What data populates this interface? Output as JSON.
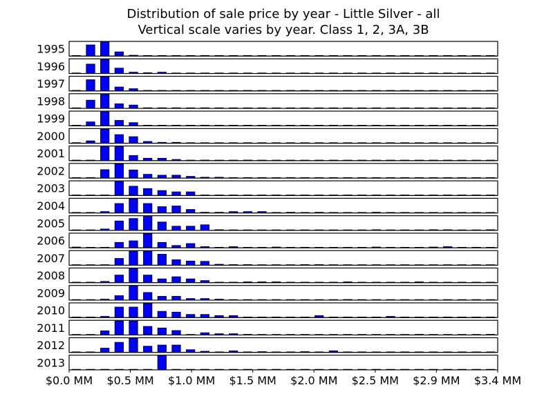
{
  "chart_data": {
    "type": "bar",
    "title": "Distribution of sale price by year - Little Silver - all",
    "subtitle": "Vertical scale varies by year. Class 1, 2, 3A, 3B",
    "xlabel": "",
    "ylabel": "",
    "x_unit": "$ MM",
    "bin_width": 0.1138,
    "xlim": [
      0,
      3.413
    ],
    "x_tick_values": [
      0,
      0.4875,
      0.975,
      1.4625,
      1.95,
      2.4375,
      2.925,
      3.413
    ],
    "x_tick_labels": [
      "$0.0 MM",
      "$0.5 MM",
      "$1.0 MM",
      "$1.5 MM",
      "$2.0 MM",
      "$2.5 MM",
      "$2.9 MM",
      "$3.4 MM"
    ],
    "bin_starts": [
      0,
      0.1138,
      0.2275,
      0.3413,
      0.4551,
      0.5689,
      0.6826,
      0.7964,
      0.9102,
      1.0239,
      1.1377,
      1.2515,
      1.3653,
      1.479,
      1.5928,
      1.7066,
      1.8203,
      1.9341,
      2.0479,
      2.1617,
      2.2754,
      2.3892,
      2.503,
      2.6168,
      2.7305,
      2.8443,
      2.9581,
      3.0718,
      3.1856,
      3.2994
    ],
    "series_colors": {
      "bar_fill": "#0000ff",
      "bar_edge": "#000000"
    },
    "panels": [
      {
        "year": "1995",
        "values": [
          0,
          4,
          5,
          1.5,
          0.3,
          0,
          0,
          0,
          0,
          0,
          0,
          0,
          0,
          0,
          0,
          0,
          0,
          0,
          0,
          0,
          0,
          0,
          0,
          0,
          0,
          0,
          0,
          0,
          0,
          0
        ]
      },
      {
        "year": "1996",
        "values": [
          0.2,
          3.5,
          5.2,
          2,
          0.5,
          0.3,
          0.5,
          0,
          0.2,
          0,
          0,
          0,
          0.2,
          0,
          0,
          0,
          0,
          0,
          0,
          0,
          0,
          0,
          0,
          0,
          0,
          0,
          0,
          0,
          0,
          0
        ]
      },
      {
        "year": "1997",
        "values": [
          0,
          4,
          5,
          1.4,
          0.8,
          0.2,
          0.2,
          0,
          0,
          0,
          0,
          0,
          0,
          0,
          0,
          0,
          0,
          0,
          0,
          0,
          0,
          0,
          0,
          0,
          0,
          0,
          0,
          0,
          0,
          0
        ]
      },
      {
        "year": "1998",
        "values": [
          0,
          2.7,
          4.6,
          1.5,
          1.1,
          0.2,
          0.2,
          0.2,
          0,
          0.2,
          0,
          0,
          0,
          0,
          0,
          0,
          0,
          0,
          0,
          0,
          0,
          0,
          0,
          0,
          0,
          0,
          0,
          0,
          0,
          0
        ]
      },
      {
        "year": "1999",
        "values": [
          0,
          1.6,
          5.7,
          2.2,
          1.3,
          0.2,
          0.2,
          0,
          0.2,
          0.2,
          0,
          0,
          0,
          0,
          0,
          0,
          0,
          0,
          0,
          0,
          0,
          0,
          0,
          0,
          0,
          0,
          0,
          0,
          0,
          0
        ]
      },
      {
        "year": "2000",
        "values": [
          0.2,
          0.8,
          4.7,
          2.9,
          2.2,
          0.6,
          0.3,
          0.3,
          0,
          0,
          0,
          0,
          0,
          0,
          0,
          0,
          0,
          0,
          0,
          0,
          0,
          0,
          0,
          0,
          0,
          0,
          0,
          0,
          0,
          0
        ]
      },
      {
        "year": "2001",
        "values": [
          0,
          0,
          4.6,
          4.6,
          1.7,
          0.8,
          0.8,
          0.4,
          0,
          0.2,
          0,
          0,
          0.2,
          0,
          0,
          0,
          0,
          0,
          0,
          0,
          0,
          0,
          0,
          0,
          0,
          0,
          0,
          0,
          0,
          0
        ]
      },
      {
        "year": "2002",
        "values": [
          0,
          0.2,
          2.9,
          4.8,
          2.8,
          1.3,
          1,
          1,
          0.6,
          0.3,
          0.3,
          0,
          0,
          0.2,
          0,
          0.2,
          0,
          0,
          0,
          0,
          0,
          0,
          0,
          0,
          0,
          0,
          0,
          0,
          0,
          0
        ]
      },
      {
        "year": "2003",
        "values": [
          0,
          0,
          0,
          4.2,
          2.8,
          2.1,
          1.5,
          1.1,
          1.1,
          0,
          0,
          0,
          0,
          0,
          0,
          0,
          0,
          0,
          0,
          0,
          0,
          0,
          0,
          0,
          0,
          0,
          0,
          0,
          0,
          0
        ]
      },
      {
        "year": "2004",
        "values": [
          0,
          0,
          0.4,
          2.7,
          4,
          2.7,
          1.8,
          2,
          1,
          0.2,
          0.2,
          0.4,
          0.4,
          0.4,
          0,
          0.2,
          0,
          0.2,
          0,
          0,
          0,
          0.2,
          0,
          0,
          0,
          0,
          0,
          0,
          0,
          0
        ]
      },
      {
        "year": "2005",
        "values": [
          0,
          0,
          0.4,
          2.7,
          3.4,
          4,
          2.4,
          1.2,
          1.2,
          1.6,
          0.2,
          0,
          0,
          0,
          0,
          0,
          0,
          0,
          0,
          0,
          0,
          0.2,
          0,
          0,
          0,
          0.2,
          0.2,
          0,
          0,
          0.2
        ]
      },
      {
        "year": "2006",
        "values": [
          0.2,
          0,
          0,
          1.4,
          1.8,
          3.6,
          1.4,
          0.6,
          1.1,
          0.3,
          0,
          0.3,
          0,
          0,
          0.2,
          0,
          0,
          0,
          0,
          0,
          0,
          0.2,
          0,
          0,
          0,
          0.2,
          0.3,
          0,
          0,
          0
        ]
      },
      {
        "year": "2007",
        "values": [
          0,
          0,
          0,
          2.1,
          4.3,
          4.3,
          3.4,
          1.7,
          1.3,
          1.2,
          0.3,
          0.2,
          0.2,
          0,
          0,
          0,
          0.2,
          0.2,
          0,
          0,
          0,
          0,
          0,
          0,
          0,
          0,
          0,
          0,
          0,
          0
        ]
      },
      {
        "year": "2008",
        "values": [
          0,
          0,
          0.3,
          1.8,
          3.3,
          1.8,
          0.9,
          1.4,
          0.9,
          0.5,
          0,
          0,
          0.2,
          0.2,
          0.2,
          0,
          0,
          0,
          0,
          0.2,
          0,
          0,
          0,
          0,
          0.2,
          0,
          0,
          0,
          0,
          0
        ]
      },
      {
        "year": "2009",
        "values": [
          0,
          0,
          0.3,
          1.4,
          4.4,
          2.4,
          1.2,
          1.2,
          0.5,
          0.5,
          0.3,
          0,
          0,
          0,
          0,
          0,
          0,
          0,
          0,
          0.2,
          0,
          0,
          0,
          0,
          0,
          0,
          0,
          0,
          0,
          0
        ]
      },
      {
        "year": "2010",
        "values": [
          0,
          0,
          0.3,
          2.7,
          2.7,
          3.6,
          1.6,
          1.4,
          0.8,
          0.8,
          0.5,
          0.5,
          0,
          0,
          0,
          0,
          0,
          0.5,
          0,
          0,
          0,
          0,
          0.3,
          0,
          0,
          0,
          0,
          0,
          0,
          0
        ]
      },
      {
        "year": "2011",
        "values": [
          0,
          0,
          1.3,
          4.4,
          4.4,
          2.7,
          2.2,
          1.4,
          0,
          0.7,
          0.4,
          0.4,
          0.2,
          0,
          0,
          0,
          0,
          0,
          0,
          0,
          0,
          0,
          0,
          0,
          0.2,
          0,
          0,
          0,
          0,
          0.2
        ]
      },
      {
        "year": "2012",
        "values": [
          0,
          0,
          1.1,
          2.6,
          3.6,
          1.6,
          1.9,
          1.9,
          0.7,
          0.3,
          0,
          0.4,
          0,
          0.2,
          0,
          0,
          0.2,
          0,
          0.4,
          0,
          0,
          0,
          0,
          0,
          0,
          0,
          0,
          0,
          0,
          0
        ]
      },
      {
        "year": "2013",
        "values": [
          0,
          0,
          0,
          0,
          0,
          0,
          1,
          0,
          0,
          0,
          0,
          0,
          0,
          0,
          0,
          0,
          0,
          0,
          0,
          0,
          0,
          0,
          0,
          0,
          0,
          0,
          0,
          0,
          0,
          0
        ]
      }
    ]
  }
}
